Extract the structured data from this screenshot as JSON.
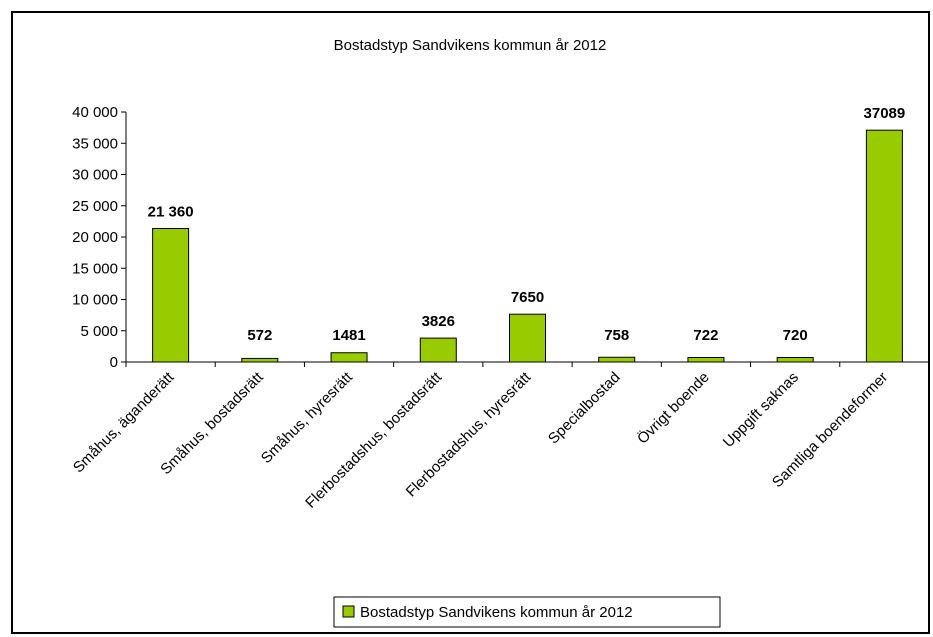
{
  "chart_data": {
    "type": "bar",
    "title": "Bostadstyp Sandvikens kommun år 2012",
    "xlabel": "",
    "ylabel": "",
    "ylim": [
      0,
      40000
    ],
    "y_ticks": [
      0,
      5000,
      10000,
      15000,
      20000,
      25000,
      30000,
      35000,
      40000
    ],
    "y_tick_labels": [
      "0",
      "5 000",
      "10 000",
      "15 000",
      "20 000",
      "25 000",
      "30 000",
      "35 000",
      "40 000"
    ],
    "categories": [
      "Småhus, äganderätt",
      "Småhus, bostadsrätt",
      "Småhus, hyresrätt",
      "Flerbostadshus, bostadsrätt",
      "Flerbostadshus, hyresrätt",
      "Specialbostad",
      "Övrigt boende",
      "Uppgift saknas",
      "Samtliga boendeformer"
    ],
    "series": [
      {
        "name": "Bostadstyp Sandvikens kommun år 2012",
        "values": [
          21360,
          572,
          1481,
          3826,
          7650,
          758,
          722,
          720,
          37089
        ],
        "labels": [
          "21 360",
          "572",
          "1481",
          "3826",
          "7650",
          "758",
          "722",
          "720",
          "37089"
        ]
      }
    ],
    "bar_color": "#99cc00",
    "grid": false,
    "legend_position": "bottom"
  }
}
